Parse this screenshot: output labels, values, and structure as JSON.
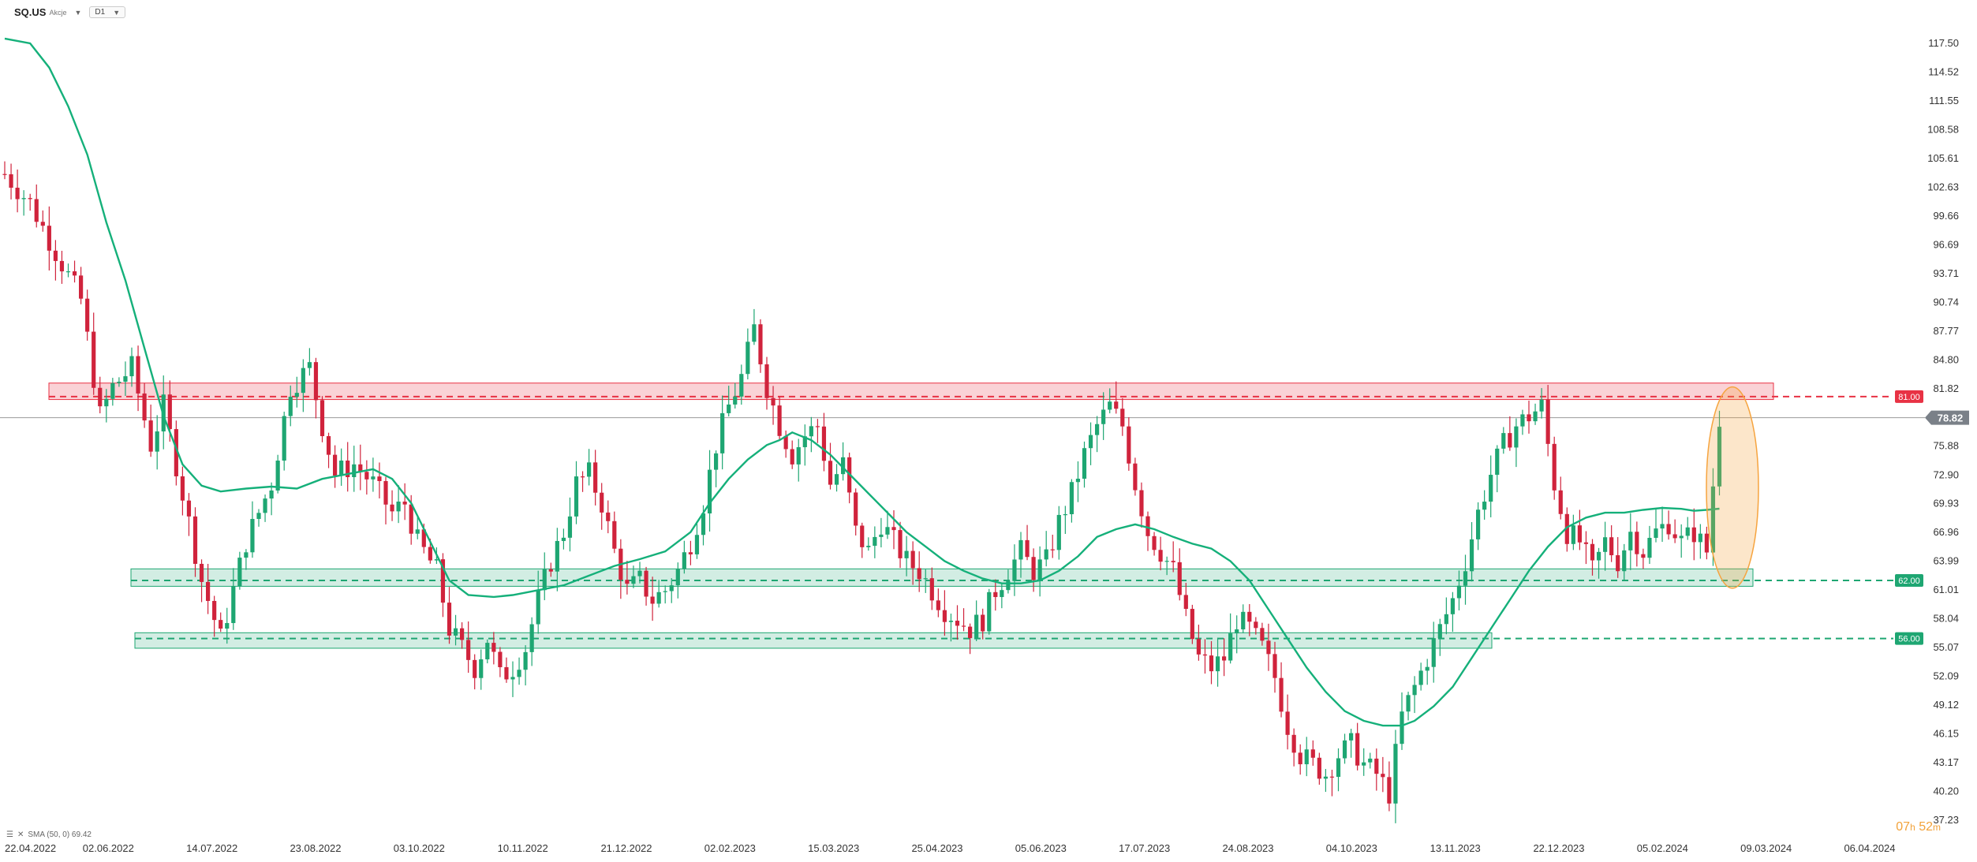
{
  "header": {
    "symbol": "SQ.US",
    "symbol_type": "Akcje",
    "timeframe": "D1"
  },
  "indicator": {
    "label": "SMA (50, 0) 69.42"
  },
  "timer": {
    "hours": "07",
    "h": "h",
    "minutes": "52",
    "m": "m"
  },
  "colors": {
    "up": "#1ea672",
    "down": "#d0233c",
    "sma": "#15b07a",
    "resistance": "#e83244",
    "support": "#1ea672",
    "highlight": "#f6a43f"
  },
  "chart_data": {
    "type": "candlestick",
    "title": "",
    "ylim": [
      37.23,
      117.5
    ],
    "y_ticks": [
      "117.50",
      "114.52",
      "111.55",
      "108.58",
      "105.61",
      "102.63",
      "99.66",
      "96.69",
      "93.71",
      "90.74",
      "87.77",
      "84.80",
      "81.82",
      "78.85",
      "75.88",
      "72.90",
      "69.93",
      "66.96",
      "63.99",
      "61.01",
      "58.04",
      "55.07",
      "52.09",
      "49.12",
      "46.15",
      "43.17",
      "40.20",
      "37.23"
    ],
    "x_labels": [
      "22.04.2022",
      "02.06.2022",
      "14.07.2022",
      "23.08.2022",
      "03.10.2022",
      "10.11.2022",
      "21.12.2022",
      "02.02.2023",
      "15.03.2023",
      "25.04.2023",
      "05.06.2023",
      "17.07.2023",
      "24.08.2023",
      "04.10.2023",
      "13.11.2023",
      "22.12.2023",
      "05.02.2024",
      "09.03.2024",
      "06.04.2024"
    ],
    "last_price": "78.82",
    "levels": [
      {
        "label": "81.00",
        "value": 81.0,
        "zone": [
          80.7,
          82.4
        ],
        "kind": "resistance"
      },
      {
        "label": "62.00",
        "value": 62.0,
        "zone": [
          61.4,
          63.2
        ],
        "kind": "support"
      },
      {
        "label": "56.00",
        "value": 56.0,
        "zone": [
          55.0,
          56.6
        ],
        "kind": "support"
      }
    ],
    "close_path": [
      [
        0,
        104
      ],
      [
        4,
        101
      ],
      [
        8,
        96
      ],
      [
        12,
        91
      ],
      [
        15,
        79
      ],
      [
        17,
        82
      ],
      [
        20,
        84
      ],
      [
        23,
        76
      ],
      [
        25,
        80
      ],
      [
        28,
        71
      ],
      [
        31,
        62
      ],
      [
        34,
        56
      ],
      [
        38,
        66
      ],
      [
        42,
        72
      ],
      [
        45,
        82
      ],
      [
        48,
        84
      ],
      [
        50,
        78
      ],
      [
        52,
        73
      ],
      [
        55,
        74
      ],
      [
        58,
        72
      ],
      [
        61,
        69
      ],
      [
        63,
        70
      ],
      [
        65,
        66
      ],
      [
        68,
        63
      ],
      [
        70,
        57
      ],
      [
        72,
        55
      ],
      [
        74,
        53
      ],
      [
        76,
        56
      ],
      [
        78,
        52
      ],
      [
        80,
        53
      ],
      [
        82,
        55
      ],
      [
        84,
        60
      ],
      [
        86,
        64
      ],
      [
        88,
        67
      ],
      [
        90,
        72
      ],
      [
        92,
        73
      ],
      [
        94,
        70
      ],
      [
        96,
        65
      ],
      [
        98,
        61
      ],
      [
        100,
        62
      ],
      [
        102,
        60
      ],
      [
        104,
        61
      ],
      [
        106,
        63
      ],
      [
        108,
        66
      ],
      [
        110,
        70
      ],
      [
        112,
        76
      ],
      [
        114,
        80
      ],
      [
        116,
        83
      ],
      [
        118,
        88
      ],
      [
        120,
        82
      ],
      [
        122,
        78
      ],
      [
        124,
        75
      ],
      [
        126,
        77
      ],
      [
        128,
        78
      ],
      [
        130,
        72
      ],
      [
        132,
        74
      ],
      [
        134,
        67
      ],
      [
        136,
        65
      ],
      [
        138,
        68
      ],
      [
        140,
        66
      ],
      [
        142,
        64
      ],
      [
        144,
        63
      ],
      [
        146,
        61
      ],
      [
        148,
        59
      ],
      [
        150,
        58
      ],
      [
        152,
        57
      ],
      [
        154,
        58
      ],
      [
        156,
        61
      ],
      [
        158,
        63
      ],
      [
        160,
        65
      ],
      [
        162,
        63
      ],
      [
        164,
        64
      ],
      [
        166,
        68
      ],
      [
        168,
        71
      ],
      [
        170,
        75
      ],
      [
        172,
        78
      ],
      [
        174,
        80
      ],
      [
        176,
        78
      ],
      [
        178,
        72
      ],
      [
        180,
        67
      ],
      [
        182,
        65
      ],
      [
        184,
        63
      ],
      [
        186,
        58
      ],
      [
        188,
        54
      ],
      [
        190,
        53
      ],
      [
        192,
        54
      ],
      [
        194,
        58
      ],
      [
        196,
        57
      ],
      [
        198,
        55
      ],
      [
        200,
        52
      ],
      [
        202,
        47
      ],
      [
        204,
        44
      ],
      [
        206,
        43
      ],
      [
        208,
        42
      ],
      [
        210,
        44
      ],
      [
        212,
        45
      ],
      [
        214,
        43
      ],
      [
        216,
        42
      ],
      [
        218,
        40
      ],
      [
        220,
        48
      ],
      [
        222,
        51
      ],
      [
        224,
        54
      ],
      [
        226,
        57
      ],
      [
        228,
        60
      ],
      [
        230,
        64
      ],
      [
        232,
        69
      ],
      [
        234,
        73
      ],
      [
        236,
        76
      ],
      [
        238,
        78
      ],
      [
        240,
        79
      ],
      [
        242,
        80
      ],
      [
        244,
        72
      ],
      [
        246,
        67
      ],
      [
        248,
        66
      ],
      [
        250,
        63
      ],
      [
        252,
        66
      ],
      [
        254,
        64
      ],
      [
        256,
        67
      ],
      [
        258,
        65
      ],
      [
        260,
        67
      ],
      [
        262,
        68
      ],
      [
        264,
        66
      ],
      [
        266,
        67
      ],
      [
        268,
        65
      ],
      [
        270,
        78.82
      ]
    ],
    "series": [
      {
        "name": "SMA (50, 0)",
        "points": [
          [
            0,
            118
          ],
          [
            4,
            117.5
          ],
          [
            7,
            115
          ],
          [
            10,
            111
          ],
          [
            13,
            106
          ],
          [
            16,
            99
          ],
          [
            19,
            93
          ],
          [
            22,
            86
          ],
          [
            25,
            79
          ],
          [
            28,
            74
          ],
          [
            31,
            71.8
          ],
          [
            34,
            71.2
          ],
          [
            38,
            71.5
          ],
          [
            42,
            71.7
          ],
          [
            46,
            71.5
          ],
          [
            50,
            72.5
          ],
          [
            54,
            73
          ],
          [
            58,
            73.5
          ],
          [
            61,
            72.5
          ],
          [
            64,
            70
          ],
          [
            67,
            66
          ],
          [
            70,
            62
          ],
          [
            73,
            60.5
          ],
          [
            77,
            60.3
          ],
          [
            80,
            60.5
          ],
          [
            84,
            61
          ],
          [
            88,
            61.5
          ],
          [
            92,
            62.5
          ],
          [
            96,
            63.5
          ],
          [
            100,
            64.2
          ],
          [
            104,
            65
          ],
          [
            108,
            67
          ],
          [
            111,
            70
          ],
          [
            114,
            72.5
          ],
          [
            117,
            74.5
          ],
          [
            120,
            76
          ],
          [
            122,
            76.5
          ],
          [
            124,
            77.3
          ],
          [
            127,
            76.5
          ],
          [
            130,
            75
          ],
          [
            133,
            73
          ],
          [
            136,
            71
          ],
          [
            139,
            69
          ],
          [
            142,
            67
          ],
          [
            145,
            65.5
          ],
          [
            148,
            64
          ],
          [
            151,
            63
          ],
          [
            154,
            62.2
          ],
          [
            157,
            61.7
          ],
          [
            160,
            61.7
          ],
          [
            163,
            62
          ],
          [
            166,
            63
          ],
          [
            169,
            64.5
          ],
          [
            172,
            66.5
          ],
          [
            175,
            67.3
          ],
          [
            178,
            67.8
          ],
          [
            181,
            67.3
          ],
          [
            184,
            66.5
          ],
          [
            187,
            65.8
          ],
          [
            190,
            65.3
          ],
          [
            193,
            64
          ],
          [
            196,
            62
          ],
          [
            199,
            59
          ],
          [
            202,
            56
          ],
          [
            205,
            53
          ],
          [
            208,
            50.5
          ],
          [
            211,
            48.5
          ],
          [
            214,
            47.5
          ],
          [
            217,
            47
          ],
          [
            220,
            47
          ],
          [
            222,
            47.5
          ],
          [
            225,
            49
          ],
          [
            228,
            51
          ],
          [
            231,
            54
          ],
          [
            234,
            57
          ],
          [
            237,
            60
          ],
          [
            240,
            63
          ],
          [
            243,
            65.5
          ],
          [
            246,
            67.5
          ],
          [
            249,
            68.5
          ],
          [
            252,
            69
          ],
          [
            255,
            69
          ],
          [
            258,
            69.3
          ],
          [
            261,
            69.5
          ],
          [
            264,
            69.4
          ],
          [
            266,
            69.2
          ],
          [
            268,
            69.3
          ],
          [
            270,
            69.42
          ]
        ]
      }
    ]
  }
}
